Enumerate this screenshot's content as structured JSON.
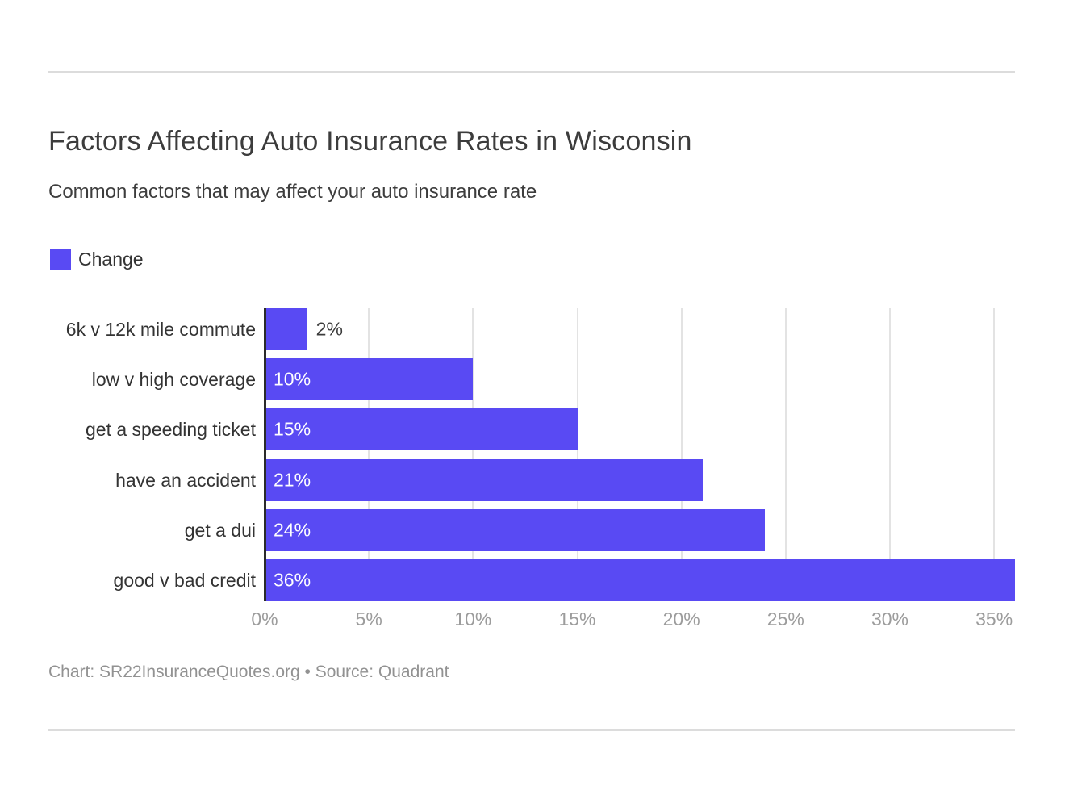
{
  "header": {
    "title": "Factors Affecting Auto Insurance Rates in Wisconsin",
    "subtitle": "Common factors that may affect your auto insurance rate"
  },
  "legend": {
    "label": "Change",
    "color": "#594af3"
  },
  "chart_data": {
    "type": "bar",
    "orientation": "horizontal",
    "title": "Factors Affecting Auto Insurance Rates in Wisconsin",
    "subtitle": "Common factors that may affect your auto insurance rate",
    "series_name": "Change",
    "categories": [
      "6k v 12k mile commute",
      "low v high coverage",
      "get a speeding ticket",
      "have an accident",
      "get a dui",
      "good v bad credit"
    ],
    "values": [
      2,
      10,
      15,
      21,
      24,
      36
    ],
    "value_labels": [
      "2%",
      "10%",
      "15%",
      "21%",
      "24%",
      "36%"
    ],
    "xlabel": "",
    "ylabel": "",
    "xlim": [
      0,
      36
    ],
    "x_tick_values": [
      0,
      5,
      10,
      15,
      20,
      25,
      30,
      35
    ],
    "x_tick_labels": [
      "0%",
      "5%",
      "10%",
      "15%",
      "20%",
      "25%",
      "30%",
      "35%"
    ],
    "bar_color": "#594af3",
    "grid": true,
    "legend_position": "top-left"
  },
  "footer": {
    "text": "Chart: SR22InsuranceQuotes.org • Source: Quadrant"
  }
}
